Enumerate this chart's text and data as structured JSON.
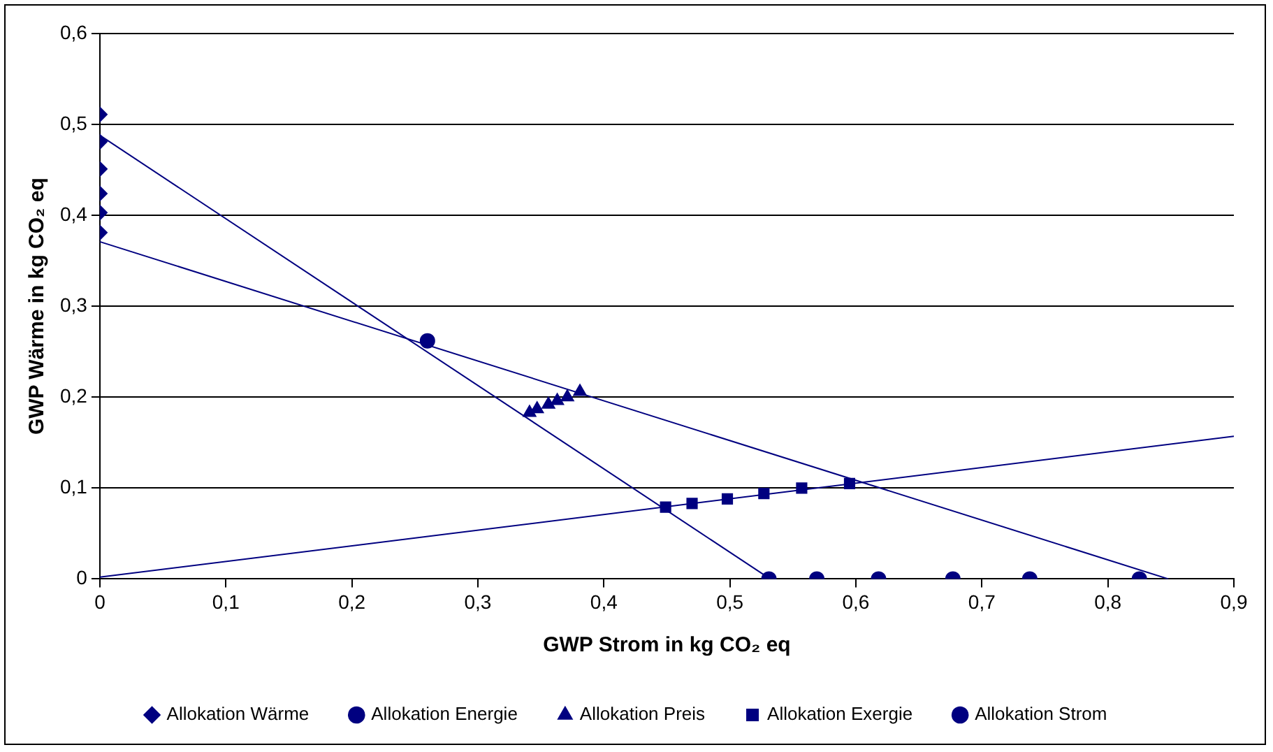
{
  "chart_data": {
    "type": "scatter",
    "xlabel": "GWP Strom in kg CO₂ eq",
    "ylabel": "GWP Wärme in kg CO₂ eq",
    "xlim": [
      0,
      0.9
    ],
    "xticks": [
      0,
      {
        "value": 0.1,
        "label": "0,1"
      },
      {
        "value": 0.2,
        "label": "0,2"
      },
      {
        "value": 0.3,
        "label": "0,3"
      },
      {
        "value": 0.4,
        "label": "0,4"
      },
      {
        "value": 0.5,
        "label": "0,5"
      },
      {
        "value": 0.6,
        "label": "0,6"
      },
      {
        "value": 0.7,
        "label": "0,7"
      },
      {
        "value": 0.8,
        "label": "0,8"
      },
      {
        "value": 0.9,
        "label": "0,9"
      }
    ],
    "ylim": [
      0,
      0.6
    ],
    "yticks": [
      0,
      {
        "value": 0.1,
        "label": "0,1"
      },
      {
        "value": 0.2,
        "label": "0,2"
      },
      {
        "value": 0.3,
        "label": "0,3"
      },
      {
        "value": 0.4,
        "label": "0,4"
      },
      {
        "value": 0.5,
        "label": "0,5"
      },
      {
        "value": 0.6,
        "label": "0,6"
      }
    ],
    "grid": "y",
    "legend": "bottom",
    "series": [
      {
        "type": "line",
        "color": "#000080",
        "marker": "none",
        "x": [
          0,
          0.532
        ],
        "values": [
          0.488,
          0
        ]
      },
      {
        "type": "line",
        "color": "#000080",
        "marker": "none",
        "x": [
          0,
          0.848
        ],
        "values": [
          0.371,
          0
        ]
      },
      {
        "type": "line",
        "color": "#000080",
        "marker": "none",
        "x": [
          0,
          0.9
        ],
        "values": [
          0.002,
          0.157
        ]
      },
      {
        "name": "Allokation Wärme",
        "type": "scatter",
        "color": "#000080",
        "marker": "diamond",
        "x": [
          0,
          0,
          0,
          0,
          0,
          0
        ],
        "values": [
          0.511,
          0.481,
          0.451,
          0.424,
          0.403,
          0.381
        ]
      },
      {
        "name": "Allokation Energie",
        "type": "scatter",
        "color": "#000080",
        "marker": "circle",
        "x": [
          0.26
        ],
        "values": [
          0.262
        ]
      },
      {
        "name": "Allokation Preis",
        "type": "scatter",
        "color": "#000080",
        "marker": "triangle",
        "x": [
          0.341,
          0.347,
          0.356,
          0.363,
          0.371,
          0.381
        ],
        "values": [
          0.183,
          0.187,
          0.192,
          0.196,
          0.2,
          0.206
        ]
      },
      {
        "name": "Allokation Exergie",
        "type": "scatter",
        "color": "#000080",
        "marker": "square",
        "x": [
          0.449,
          0.47,
          0.498,
          0.527,
          0.557,
          0.595
        ],
        "values": [
          0.079,
          0.083,
          0.088,
          0.094,
          0.1,
          0.105
        ]
      },
      {
        "name": "Allokation Strom",
        "type": "scatter",
        "color": "#000080",
        "marker": "circle",
        "x": [
          0.531,
          0.569,
          0.618,
          0.677,
          0.738,
          0.825
        ],
        "values": [
          0,
          0,
          0,
          0,
          0,
          0
        ]
      }
    ]
  }
}
